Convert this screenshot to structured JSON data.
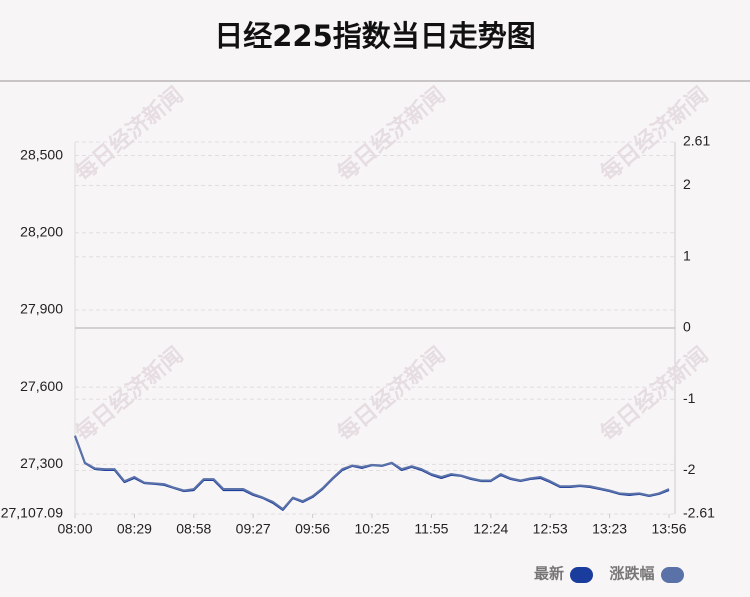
{
  "chart_data": {
    "type": "line",
    "title": "日经225指数当日走势图",
    "watermark": "每日经济新闻",
    "xlim": [
      0,
      60
    ],
    "xticks": [
      {
        "value": 0,
        "label": "08:00"
      },
      {
        "value": 6,
        "label": "08:29"
      },
      {
        "value": 12,
        "label": "08:58"
      },
      {
        "value": 18,
        "label": "09:27"
      },
      {
        "value": 24,
        "label": "09:56"
      },
      {
        "value": 30,
        "label": "10:25"
      },
      {
        "value": 36,
        "label": "11:55"
      },
      {
        "value": 42,
        "label": "12:24"
      },
      {
        "value": 48,
        "label": "12:53"
      },
      {
        "value": 54,
        "label": "13:23"
      },
      {
        "value": 60,
        "label": "13:56"
      }
    ],
    "ylim": [
      27107.09,
      28552.7
    ],
    "yticks": [
      {
        "value": 27107.09,
        "label": "27,107.09"
      },
      {
        "value": 27300,
        "label": "27,300"
      },
      {
        "value": 27600,
        "label": "27,600"
      },
      {
        "value": 27900,
        "label": "27,900"
      },
      {
        "value": 28200,
        "label": "28,200"
      },
      {
        "value": 28500,
        "label": "28,500"
      }
    ],
    "y2lim": [
      -2.61,
      2.61
    ],
    "y2ticks": [
      -2.61,
      -2,
      -1,
      0,
      1,
      2,
      2.61
    ],
    "grid": true,
    "series": [
      {
        "name": "最新",
        "color": "#1a3c9c",
        "values": [
          27410,
          27305,
          27282,
          27278,
          27278,
          27231,
          27247,
          27227,
          27224,
          27220,
          27208,
          27196,
          27200,
          27239,
          27239,
          27200,
          27200,
          27200,
          27181,
          27169,
          27150,
          27123,
          27169,
          27154,
          27173,
          27204,
          27243,
          27278,
          27294,
          27286,
          27297,
          27294,
          27305,
          27278,
          27290,
          27278,
          27259,
          27247,
          27259,
          27255,
          27243,
          27235,
          27235,
          27259,
          27243,
          27235,
          27243,
          27247,
          27231,
          27212,
          27212,
          27216,
          27212,
          27204,
          27196,
          27185,
          27181,
          27185,
          27177,
          27185,
          27200
        ]
      },
      {
        "name": "涨跌幅",
        "color": "#5a72a8",
        "axis": "y2",
        "values": [
          -1.51,
          -1.89,
          -1.97,
          -1.98,
          -1.98,
          -2.15,
          -2.09,
          -2.17,
          -2.18,
          -2.19,
          -2.24,
          -2.28,
          -2.26,
          -2.12,
          -2.12,
          -2.26,
          -2.26,
          -2.26,
          -2.33,
          -2.38,
          -2.44,
          -2.54,
          -2.38,
          -2.43,
          -2.36,
          -2.25,
          -2.11,
          -1.98,
          -1.93,
          -1.95,
          -1.92,
          -1.93,
          -1.89,
          -1.98,
          -1.94,
          -1.98,
          -2.05,
          -2.09,
          -2.05,
          -2.07,
          -2.11,
          -2.14,
          -2.14,
          -2.05,
          -2.11,
          -2.14,
          -2.11,
          -2.09,
          -2.15,
          -2.22,
          -2.22,
          -2.21,
          -2.22,
          -2.25,
          -2.28,
          -2.32,
          -2.33,
          -2.32,
          -2.35,
          -2.32,
          -2.26
        ]
      }
    ]
  }
}
